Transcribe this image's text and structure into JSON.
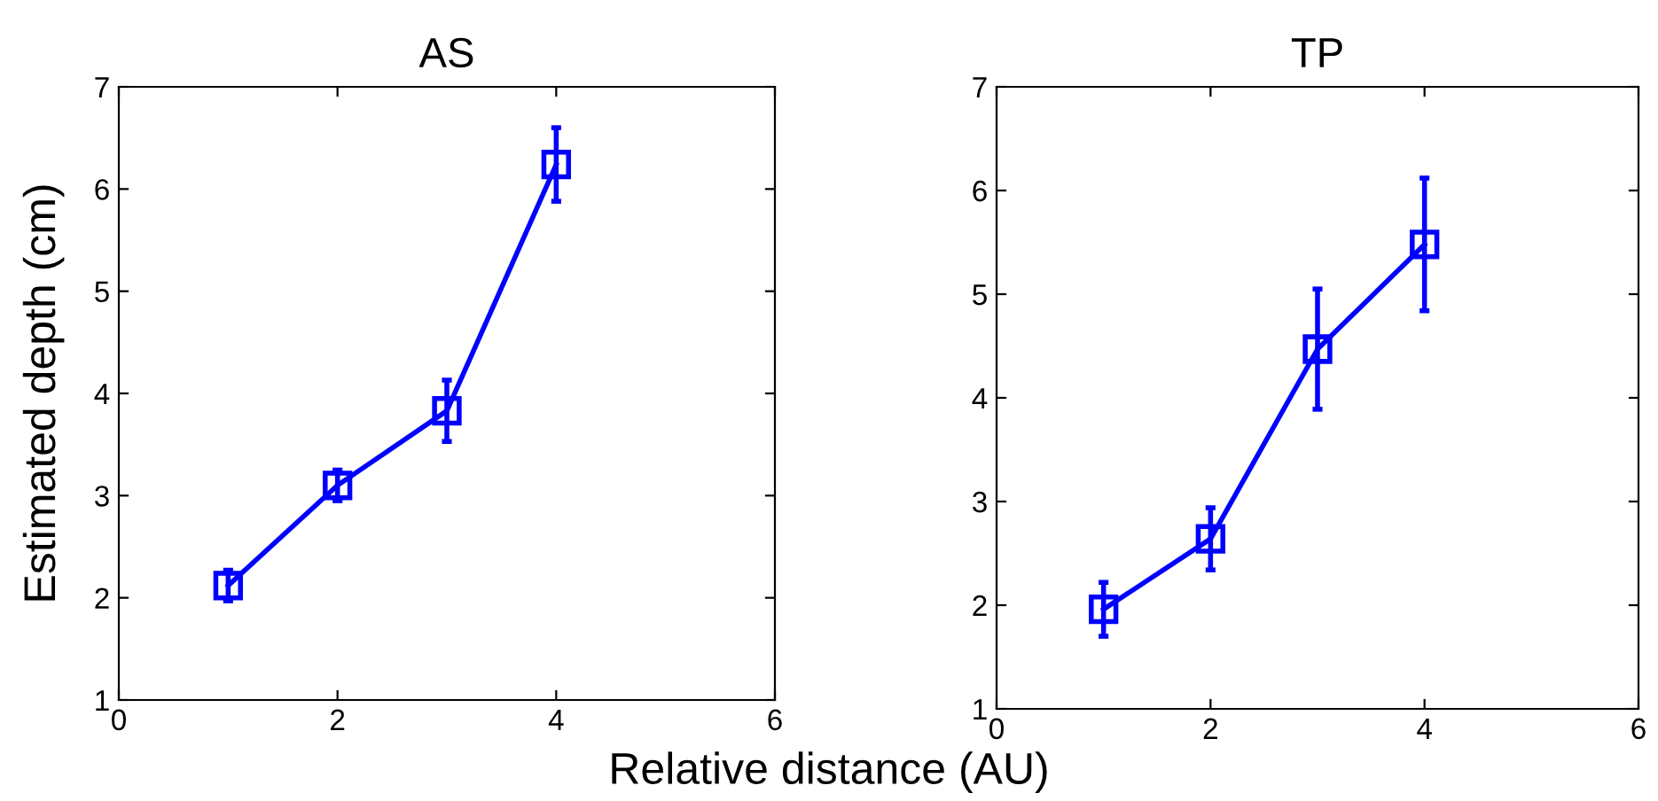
{
  "chart_data": [
    {
      "type": "line",
      "title": "AS",
      "xlabel": "Relative distance (AU)",
      "ylabel": "Estimated depth (cm)",
      "x": [
        1,
        2,
        3,
        4
      ],
      "marker": "square",
      "line_style": "solid",
      "series": [
        {
          "color": "#0000ff",
          "values": [
            2.12,
            3.1,
            3.83,
            6.24
          ],
          "errors": [
            0.15,
            0.15,
            0.3,
            0.36
          ]
        }
      ],
      "xlim": [
        0,
        6
      ],
      "xticks": [
        0,
        2,
        4,
        6
      ],
      "ylim": [
        1,
        7
      ],
      "yticks": [
        1,
        2,
        3,
        4,
        5,
        6,
        7
      ],
      "grid": false,
      "legend": false
    },
    {
      "type": "line",
      "title": "TP",
      "x": [
        1,
        2,
        3,
        4
      ],
      "marker": "square",
      "line_style": "solid",
      "series": [
        {
          "color": "#0000ff",
          "values": [
            1.96,
            2.64,
            4.47,
            5.48
          ],
          "errors": [
            0.26,
            0.3,
            0.58,
            0.64
          ]
        }
      ],
      "xlim": [
        0,
        6
      ],
      "xticks": [
        0,
        2,
        4,
        6
      ],
      "ylim": [
        1,
        7
      ],
      "yticks": [
        1,
        2,
        3,
        4,
        5,
        6,
        7
      ],
      "grid": false,
      "legend": false
    }
  ]
}
